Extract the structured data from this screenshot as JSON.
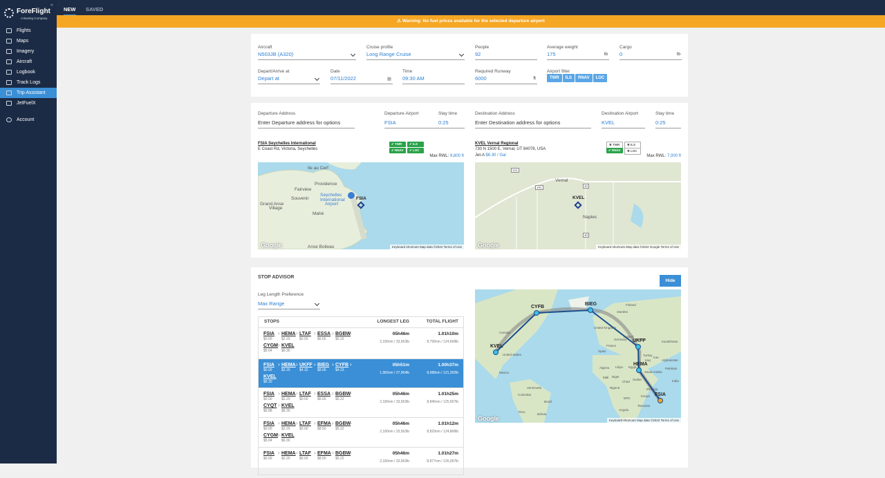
{
  "sidebar": {
    "brand": "ForeFlight",
    "brand_sub": "A Boeing Company",
    "nav": [
      "Flights",
      "Maps",
      "Imagery",
      "Aircraft",
      "Logbook",
      "Track Logs",
      "Trip Assistant",
      "JetFuelX"
    ],
    "account": "Account"
  },
  "tabs": [
    "NEW",
    "SAVED"
  ],
  "warning": "Warning: No fuel prices available for the selected departure airport",
  "form": {
    "fields": [
      {
        "label": "Aircraft",
        "value": "N503JB (A320)"
      },
      {
        "label": "Cruise profile",
        "value": "Long Range Cruise"
      },
      {
        "label": "People",
        "value": "92"
      },
      {
        "label": "Average weight",
        "value": "175",
        "unit": "lb"
      },
      {
        "label": "Cargo",
        "value": "0",
        "unit": "lb"
      },
      {
        "label": "Depart/Arrive at",
        "value": "Depart at"
      },
      {
        "label": "Date",
        "value": "07/11/2022"
      },
      {
        "label": "Time",
        "value": "09:30 AM"
      },
      {
        "label": "Required Runway",
        "value": "6000",
        "unit": "ft"
      }
    ],
    "filter_label": "Airport filter",
    "filters": [
      "TWR",
      "ILS",
      "RNAV",
      "LOC"
    ]
  },
  "airports": {
    "fields": [
      {
        "label": "Departure Address",
        "value": "Enter Departure address for options"
      },
      {
        "label": "Departure Airport",
        "value": "FSIA"
      },
      {
        "label": "Stay time",
        "value": "0:25"
      },
      {
        "label": "Destination Address",
        "value": "Enter Destination address for options"
      },
      {
        "label": "Destination Airport",
        "value": "KVEL"
      },
      {
        "label": "Stay time",
        "value": "0:25"
      }
    ],
    "departure": {
      "name": "FSIA Seychelles International",
      "address": "E Coast Rd, Victoria, Seychelles",
      "badges": [
        {
          "label": "TWR",
          "available": true
        },
        {
          "label": "ILS",
          "available": true
        },
        {
          "label": "RNAV",
          "available": true
        },
        {
          "label": "LOC",
          "available": true
        }
      ],
      "rwl_label": "Max RWL:",
      "rwl": "9,800 ft",
      "map": [
        "Ile au Cerf",
        "Providence",
        "Fairview",
        "Souvenir",
        "Grand Anse",
        "Village",
        "Mahé",
        "Seychelles",
        "International",
        "Airport",
        "FSIA",
        "Anse Boileau"
      ]
    },
    "destination": {
      "name": "KVEL Vernal Regional",
      "address": "730 N 1500 E, Vernal, UT 84078, USA",
      "fuel_label": "Jet-A",
      "fuel": "$6.30 / Gal",
      "badges": [
        {
          "label": "TWR",
          "available": false
        },
        {
          "label": "ILS",
          "available": false
        },
        {
          "label": "RNAV",
          "available": true
        },
        {
          "label": "LOC",
          "available": false
        }
      ],
      "rwl_label": "Max RWL:",
      "rwl": "7,000 ft",
      "map": [
        "121",
        "Vernal",
        "191",
        "40",
        "KVEL",
        "Naples",
        "40"
      ]
    },
    "map_footer": {
      "google": "Google",
      "shortcuts": "Keyboard shortcuts",
      "data_left": "Map data ©2022",
      "data_right": "Map data ©2022 Google",
      "terms": "Terms of Use"
    }
  },
  "stop_advisor": {
    "title": "STOP ADVISOR",
    "hide": "Hide",
    "pref_label": "Leg Length Preference",
    "pref": "Max Range",
    "headers": [
      "STOPS",
      "LONGEST LEG",
      "TOTAL FLIGHT"
    ],
    "rows": [
      {
        "stops": [
          [
            "FSIA",
            "$0.00"
          ],
          [
            "HEMA",
            "$2.20"
          ],
          [
            "LTAF",
            "$0.00"
          ],
          [
            "ESSA",
            "$6.65"
          ],
          [
            "BGBW",
            "$5.22"
          ],
          [
            "CYGM",
            "$5.04"
          ],
          [
            "KVEL",
            "$6.30"
          ]
        ],
        "leg": "05h46m",
        "leg_detail": "2,180nm / 33,563lb",
        "total": "1.01h10m",
        "total_detail": "8,799nm / 124,668lb"
      },
      {
        "stops": [
          [
            "FSIA",
            "$0.00"
          ],
          [
            "HEMA",
            "$2.20"
          ],
          [
            "UKFF",
            "$4.15"
          ],
          [
            "BIEG",
            "$8.00"
          ],
          [
            "CYFB",
            "$4.23"
          ],
          [
            "KVEL",
            "$6.30"
          ]
        ],
        "leg": "05h51m",
        "leg_detail": "1,983nm / 27,964lb",
        "total": "1.00h37m",
        "total_detail": "8,688nm / 121,392lb",
        "selected": true
      },
      {
        "stops": [
          [
            "FSIA",
            "$0.00"
          ],
          [
            "HEMA",
            "$2.20"
          ],
          [
            "LTAF",
            "$0.00"
          ],
          [
            "ESSA",
            "$6.65"
          ],
          [
            "BGBW",
            "$5.22"
          ],
          [
            "CYQT",
            "$6.88"
          ],
          [
            "KVEL",
            "$6.30"
          ]
        ],
        "leg": "05h46m",
        "leg_detail": "2,180nm / 33,563lb",
        "total": "1.01h25m",
        "total_detail": "8,846nm / 125,697lb"
      },
      {
        "stops": [
          [
            "FSIA",
            "$0.00"
          ],
          [
            "HEMA",
            "$2.20"
          ],
          [
            "LTAF",
            "$0.00"
          ],
          [
            "EFMA",
            "$8.50"
          ],
          [
            "BGBW",
            "$5.22"
          ],
          [
            "CYGM",
            "$5.04"
          ],
          [
            "KVEL",
            "$6.30"
          ]
        ],
        "leg": "05h46m",
        "leg_detail": "2,180nm / 33,563lb",
        "total": "1.01h12m",
        "total_detail": "8,829nm / 124,868lb"
      },
      {
        "stops": [
          [
            "FSIA",
            "$0.00"
          ],
          [
            "HEMA",
            "$2.20"
          ],
          [
            "LTAF",
            "$0.00"
          ],
          [
            "EFMA",
            "$8.50"
          ],
          [
            "BGBW",
            "$5.22"
          ]
        ],
        "leg": "05h46m",
        "leg_detail": "2,180nm / 33,563lb",
        "total": "1.01h27m",
        "total_detail": "8,877nm / 126,097lb"
      }
    ],
    "map_airports": [
      "CYFB",
      "BIEG",
      "UKFF",
      "KVEL",
      "HEMA",
      "FSIA"
    ],
    "map_labels": [
      "Finland",
      "Sweden",
      "United Kingdom",
      "Germany",
      "Poland",
      "France",
      "Spain",
      "Ukraine",
      "Turkey",
      "Kazakhstan",
      "Canada",
      "United States",
      "Mexico",
      "Algeria",
      "Libya",
      "Egypt",
      "Saudi Arabia",
      "Mali",
      "Niger",
      "Chad",
      "Sudan",
      "Nigeria",
      "Ethiopia",
      "DRC",
      "Kenya",
      "Tanzania",
      "Angola",
      "Namibia",
      "Venezuela",
      "Colombia",
      "Brazil",
      "Peru",
      "Bolivia",
      "Afghanistan",
      "Pakistan",
      "India",
      "Iran",
      "Iraq"
    ]
  }
}
